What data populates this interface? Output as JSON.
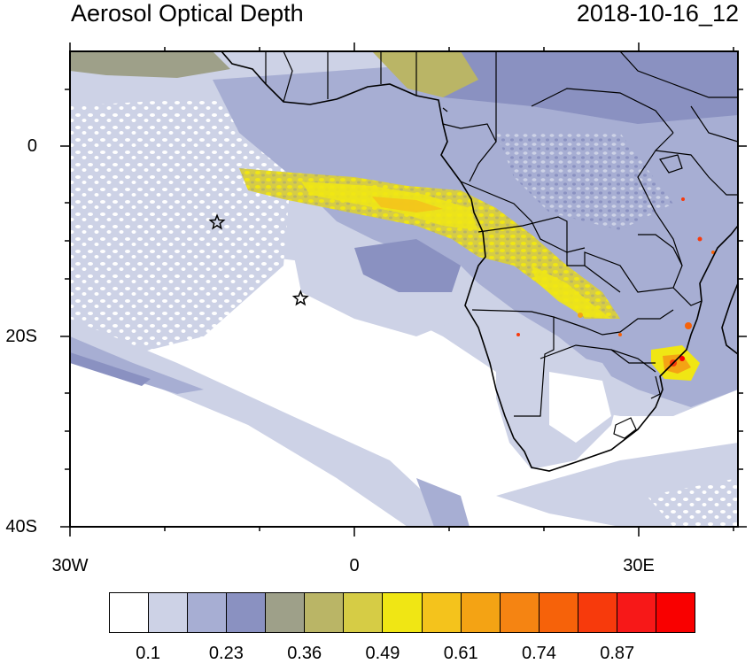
{
  "header": {
    "title": "Aerosol Optical Depth",
    "datetime": "2018-10-16_12"
  },
  "axes": {
    "lat_labels": [
      "0",
      "20S",
      "40S"
    ],
    "lon_labels": [
      "30W",
      "0",
      "30E"
    ]
  },
  "colorbar": {
    "colors": [
      "#ffffff",
      "#cdd2e6",
      "#a7aed3",
      "#8a91c1",
      "#9ea089",
      "#bab566",
      "#d6cc45",
      "#f0e614",
      "#f4c31c",
      "#f4a314",
      "#f58412",
      "#f6620a",
      "#f73a0c",
      "#f71818",
      "#f90000"
    ],
    "labels": [
      "0.1",
      "0.23",
      "0.36",
      "0.49",
      "0.61",
      "0.74",
      "0.87"
    ]
  },
  "markers": [
    {
      "label": "star-marker-1",
      "lon": -14.5,
      "lat": -8.0
    },
    {
      "label": "star-marker-2",
      "lon": -5.7,
      "lat": -16.0
    }
  ]
}
